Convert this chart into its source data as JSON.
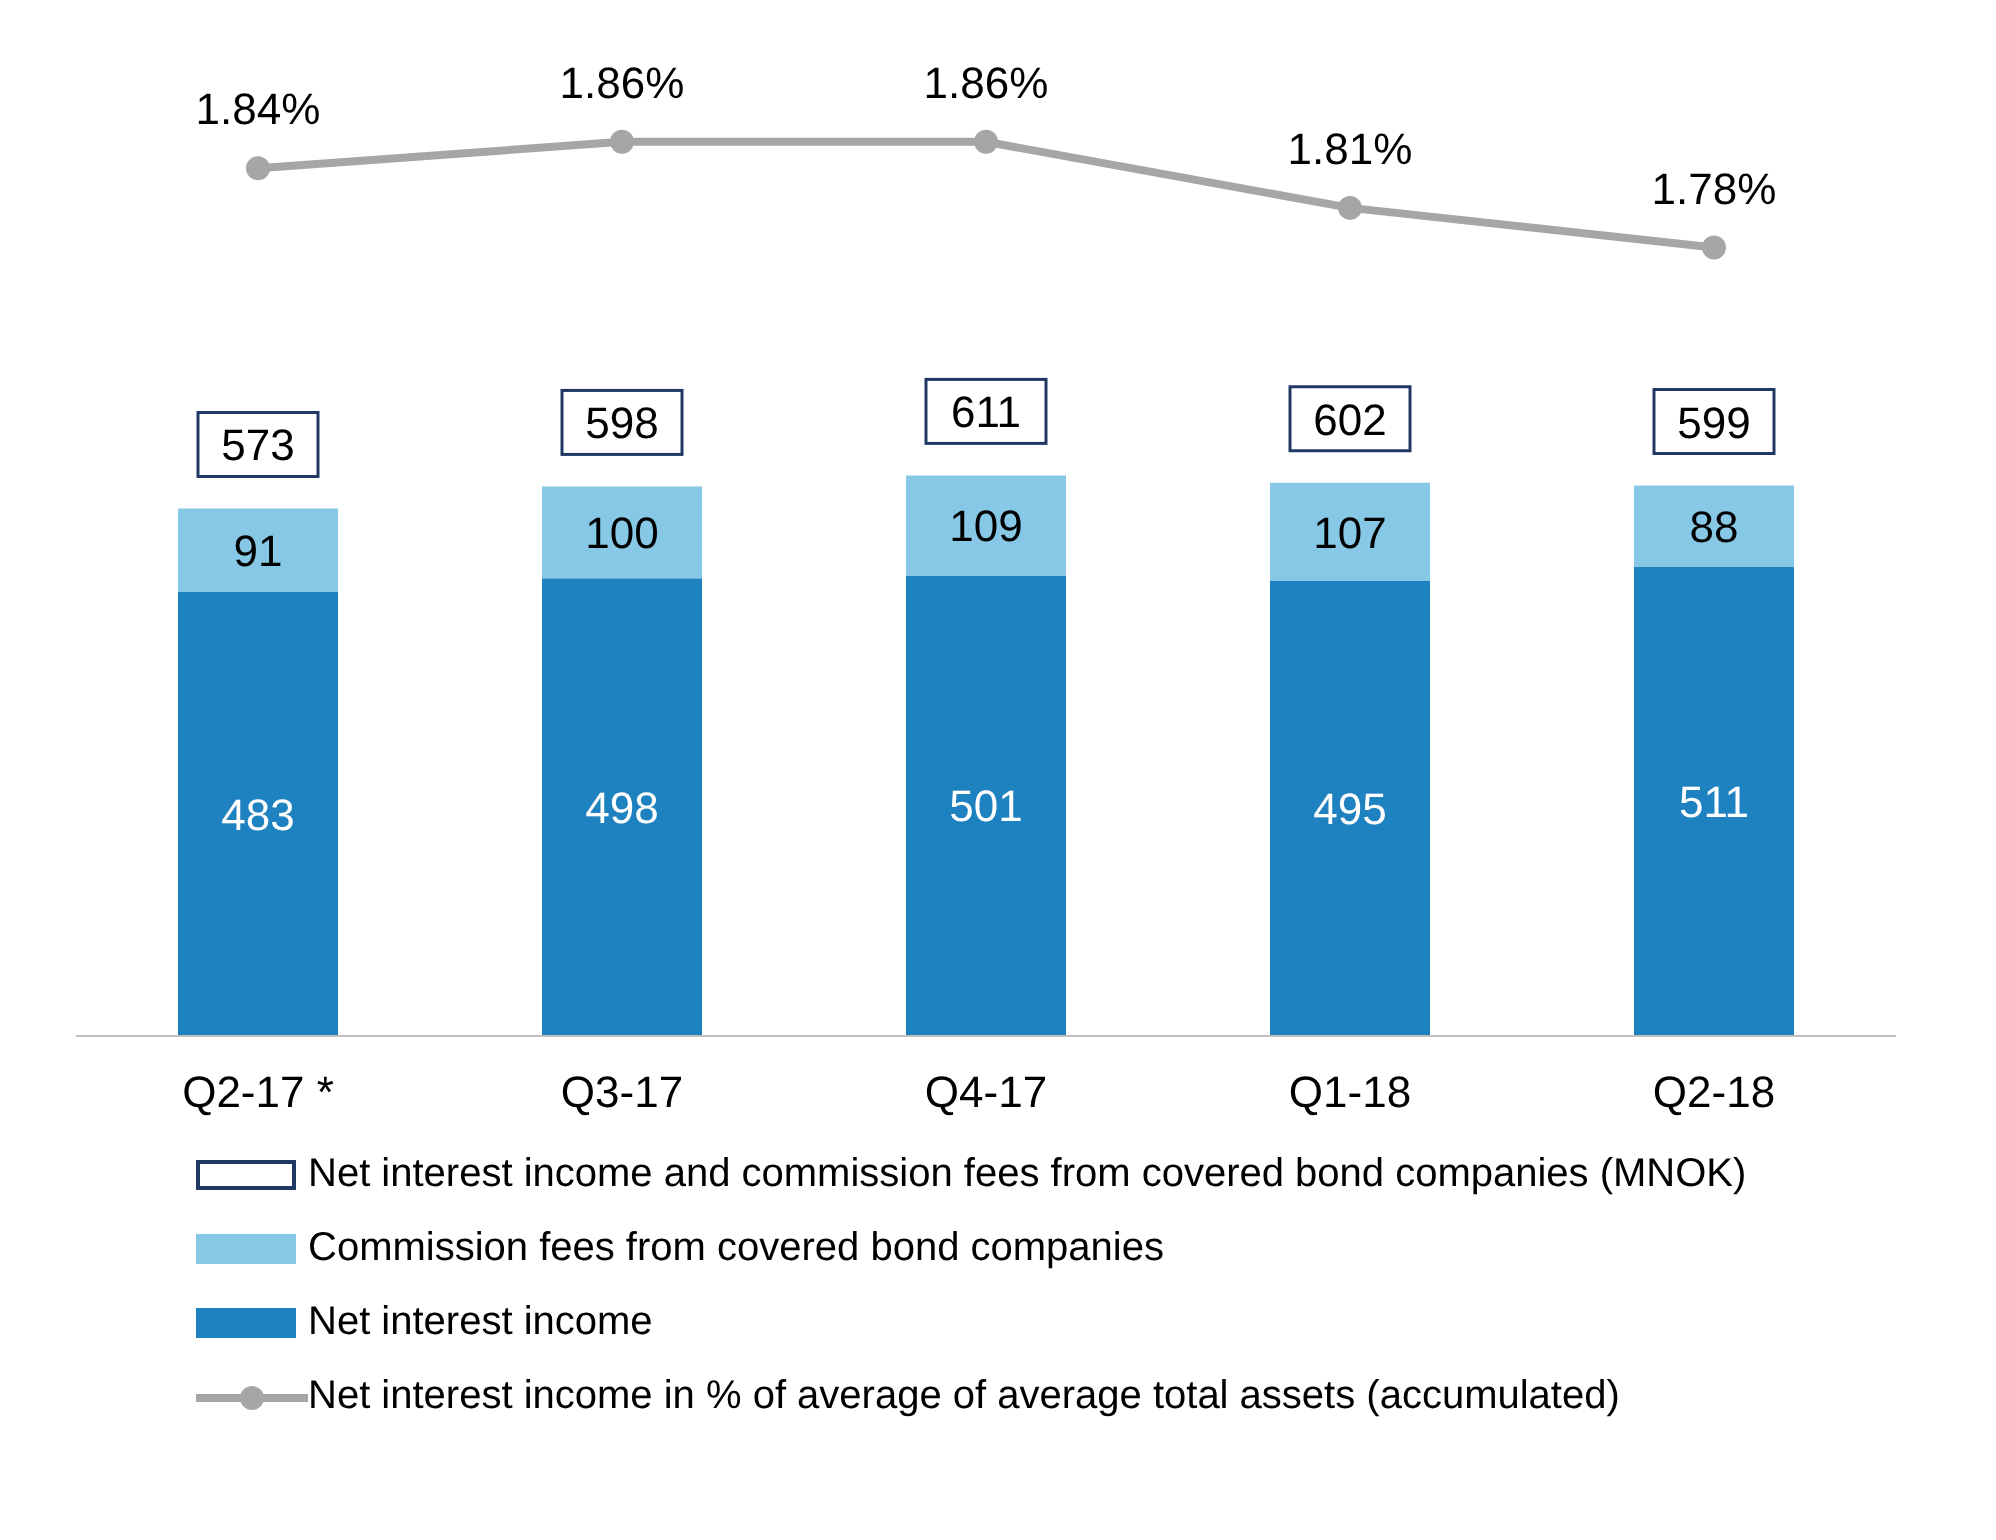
{
  "chart_data": [
    {
      "type": "line",
      "categories": [
        null,
        null,
        null,
        null,
        null
      ],
      "series": [
        {
          "name": "Net interest income in % of average of average total assets (accumulated)",
          "color": "#a6a6a6",
          "values": [
            1.84,
            1.86,
            1.86,
            1.81,
            1.78
          ],
          "value_labels": [
            "1.84%",
            "1.86%",
            "1.86%",
            "1.81%",
            "1.78%"
          ]
        }
      ],
      "marker": "circle",
      "legend": "bottom"
    },
    {
      "type": "bar",
      "stacked": true,
      "categories": [
        "Q2-17 *",
        "Q3-17",
        "Q4-17",
        "Q1-18",
        "Q2-18"
      ],
      "series": [
        {
          "name": "Net interest income",
          "color": "#1f82c0",
          "values": [
            483,
            498,
            501,
            495,
            511
          ]
        },
        {
          "name": "Commission fees from covered bond companies",
          "color": "#87c8e6",
          "values": [
            91,
            100,
            109,
            107,
            88
          ]
        }
      ],
      "data_labels": true,
      "totals": [
        "573",
        "598",
        "611",
        "602",
        "599"
      ],
      "annotations": [
        "Net interest income and commission fees from covered bond companies (MNOK)"
      ],
      "legend": "bottom"
    }
  ]
}
